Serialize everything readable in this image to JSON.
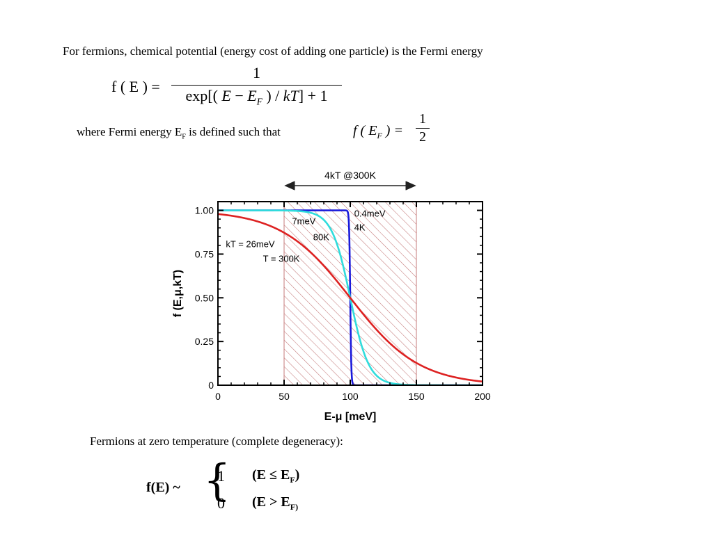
{
  "intro_text": "For fermions, chemical potential (energy cost of adding one particle) is the Fermi energy",
  "equation_main": {
    "lhs": "f ( E ) =",
    "numerator": "1",
    "den_a": "exp[( ",
    "den_e": "E",
    "den_minus": " − ",
    "den_ef": "E",
    "den_f_sub": "F",
    "den_b": " ) / ",
    "den_kt": "kT",
    "den_c": "] + 1"
  },
  "where": {
    "text_a": "where Fermi energy E",
    "sub": "F",
    "text_b": " is defined such that"
  },
  "equation_half": {
    "lhs_a": "f ( E",
    "lhs_sub": "F",
    "lhs_b": " ) =",
    "numerator": "1",
    "denominator": "2"
  },
  "chart_data": {
    "type": "line",
    "title": "",
    "xlabel": "E-μ [meV]",
    "ylabel": "f (E,μ,kT)",
    "xlim": [
      0,
      200
    ],
    "ylim": [
      0,
      1.05
    ],
    "x_ticks": [
      "0",
      "50",
      "100",
      "150",
      "200"
    ],
    "y_ticks": [
      "0",
      "0.25",
      "0.50",
      "0.75",
      "1.00"
    ],
    "x_tick_values": [
      0,
      50,
      100,
      150,
      200
    ],
    "y_tick_values": [
      0,
      0.25,
      0.5,
      0.75,
      1.0
    ],
    "mu_meV": 100,
    "hatch_range": [
      50,
      150
    ],
    "range_label": "4kT @300K",
    "series": [
      {
        "label_lines": [
          "0.4meV",
          "4K"
        ],
        "kT_meV": 0.4,
        "color": "#1a1adb"
      },
      {
        "label_lines": [
          "7meV",
          "80K"
        ],
        "kT_meV": 7,
        "color": "#30dcdc"
      },
      {
        "label_lines": [
          "kT = 26meV",
          "T = 300K"
        ],
        "kT_meV": 26,
        "color": "#dd2222"
      }
    ],
    "grid": false
  },
  "zero_temp_title": "Fermions at zero temperature (complete degeneracy):",
  "piecewise": {
    "lhs": "f(E) ~",
    "case1_value": "1",
    "case1_cond_a": "(E ≤ E",
    "case1_cond_sub": "F",
    "case1_cond_b": ")",
    "case2_value": "0",
    "case2_cond_a": "(E > E",
    "case2_cond_sub": "F)",
    "case2_cond_b": ""
  },
  "colors": {
    "hatch": "#c47a7a",
    "arrow": "#222222",
    "text": "#000000"
  }
}
